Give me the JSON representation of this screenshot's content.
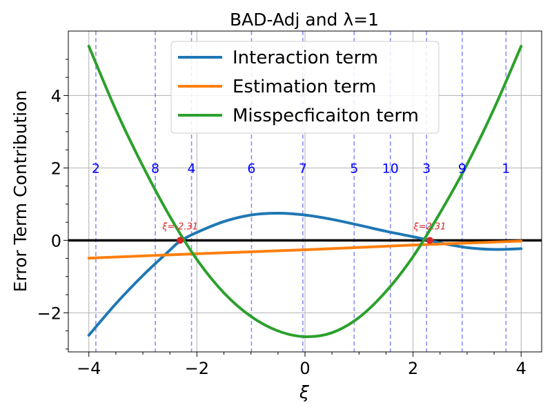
{
  "chart_data": {
    "type": "line",
    "title": "BAD-Adj and λ=1",
    "xlabel": "ξ",
    "ylabel": "Error Term Contribution",
    "xlim": [
      -4.38,
      4.38
    ],
    "ylim": [
      -3.08,
      5.78
    ],
    "xticks": [
      -4,
      -2,
      0,
      2,
      4
    ],
    "xtick_labels": [
      "−4",
      "−2",
      "0",
      "2",
      "4"
    ],
    "yticks": [
      -2,
      0,
      2,
      4
    ],
    "ytick_labels": [
      "−2",
      "0",
      "2",
      "4"
    ],
    "grid": true,
    "legend_position": "upper center",
    "series": [
      {
        "name": "Interaction term",
        "color": "#1f77b4",
        "x": [
          -4.0,
          -3.5,
          -3.0,
          -2.5,
          -2.31,
          -2.0,
          -1.5,
          -1.0,
          -0.5,
          0.0,
          0.5,
          1.0,
          1.5,
          2.0,
          2.31,
          2.5,
          3.0,
          3.5,
          4.0
        ],
        "y": [
          -2.62,
          -1.75,
          -0.97,
          -0.27,
          -0.02,
          0.22,
          0.52,
          0.7,
          0.75,
          0.7,
          0.58,
          0.42,
          0.25,
          0.1,
          0.0,
          -0.07,
          -0.2,
          -0.25,
          -0.23
        ]
      },
      {
        "name": "Estimation term",
        "color": "#ff7f0e",
        "x": [
          -4.0,
          -2.0,
          0.0,
          2.0,
          4.0
        ],
        "y": [
          -0.49,
          -0.37,
          -0.26,
          -0.13,
          -0.02
        ]
      },
      {
        "name": "Misspecficaiton term",
        "color": "#2ca02c",
        "x": [
          -4.0,
          -3.5,
          -3.0,
          -2.5,
          -2.0,
          -1.5,
          -1.0,
          -0.5,
          0.0,
          0.5,
          1.0,
          1.5,
          2.0,
          2.5,
          3.0,
          3.5,
          4.0
        ],
        "y": [
          5.36,
          3.6,
          2.05,
          0.66,
          -0.53,
          -1.45,
          -2.1,
          -2.5,
          -2.66,
          -2.55,
          -2.13,
          -1.41,
          -0.45,
          0.76,
          2.1,
          3.64,
          5.36
        ]
      }
    ],
    "zero_line": {
      "y": 0,
      "color": "#000000"
    },
    "vertical_lines": [
      {
        "x": -3.87,
        "label": "2"
      },
      {
        "x": -2.77,
        "label": "8"
      },
      {
        "x": -2.1,
        "label": "4"
      },
      {
        "x": -0.99,
        "label": "6"
      },
      {
        "x": -0.04,
        "label": "7"
      },
      {
        "x": 0.91,
        "label": "5"
      },
      {
        "x": 1.58,
        "label": "10"
      },
      {
        "x": 2.25,
        "label": "3"
      },
      {
        "x": 2.91,
        "label": "9"
      },
      {
        "x": 3.72,
        "label": "1"
      }
    ],
    "vertical_label_y": 2.0,
    "vertical_line_color": "#0000ff",
    "roots": [
      {
        "x": -2.31,
        "y": 0,
        "label": "ξ=-2.31"
      },
      {
        "x": 2.31,
        "y": 0,
        "label": "ξ=2.31"
      }
    ],
    "root_color": "#d62728"
  }
}
